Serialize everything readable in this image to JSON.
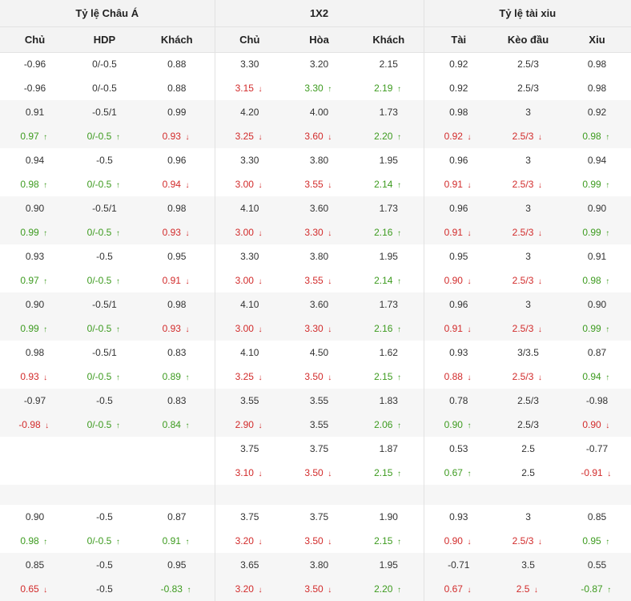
{
  "colors": {
    "up": "#3d9b1f",
    "down": "#d22b2b",
    "header_bg": "#f3f3f3",
    "alt_row_bg": "#f6f6f6"
  },
  "icons": {
    "up": "arrow-up-icon",
    "down": "arrow-down-icon"
  },
  "header": {
    "groups": [
      "Tỷ lệ Châu Á",
      "1X2",
      "Tỷ lệ tài xiu"
    ],
    "columns": [
      "Chủ",
      "HDP",
      "Khách",
      "Chủ",
      "Hòa",
      "Khách",
      "Tài",
      "Kèo đầu",
      "Xiu"
    ]
  },
  "rows": [
    {
      "shade": false,
      "cells": [
        {
          "v": "-0.96"
        },
        {
          "v": "0/-0.5"
        },
        {
          "v": "0.88"
        },
        {
          "v": "3.30"
        },
        {
          "v": "3.20"
        },
        {
          "v": "2.15"
        },
        {
          "v": "0.92"
        },
        {
          "v": "2.5/3"
        },
        {
          "v": "0.98"
        }
      ]
    },
    {
      "shade": false,
      "cells": [
        {
          "v": "-0.96"
        },
        {
          "v": "0/-0.5"
        },
        {
          "v": "0.88"
        },
        {
          "v": "3.15",
          "d": "down"
        },
        {
          "v": "3.30",
          "d": "up"
        },
        {
          "v": "2.19",
          "d": "up"
        },
        {
          "v": "0.92"
        },
        {
          "v": "2.5/3"
        },
        {
          "v": "0.98"
        }
      ]
    },
    {
      "shade": true,
      "cells": [
        {
          "v": "0.91"
        },
        {
          "v": "-0.5/1"
        },
        {
          "v": "0.99"
        },
        {
          "v": "4.20"
        },
        {
          "v": "4.00"
        },
        {
          "v": "1.73"
        },
        {
          "v": "0.98"
        },
        {
          "v": "3"
        },
        {
          "v": "0.92"
        }
      ]
    },
    {
      "shade": true,
      "cells": [
        {
          "v": "0.97",
          "d": "up"
        },
        {
          "v": "0/-0.5",
          "d": "up"
        },
        {
          "v": "0.93",
          "d": "down"
        },
        {
          "v": "3.25",
          "d": "down"
        },
        {
          "v": "3.60",
          "d": "down"
        },
        {
          "v": "2.20",
          "d": "up"
        },
        {
          "v": "0.92",
          "d": "down"
        },
        {
          "v": "2.5/3",
          "d": "down"
        },
        {
          "v": "0.98",
          "d": "up"
        }
      ]
    },
    {
      "shade": false,
      "cells": [
        {
          "v": "0.94"
        },
        {
          "v": "-0.5"
        },
        {
          "v": "0.96"
        },
        {
          "v": "3.30"
        },
        {
          "v": "3.80"
        },
        {
          "v": "1.95"
        },
        {
          "v": "0.96"
        },
        {
          "v": "3"
        },
        {
          "v": "0.94"
        }
      ]
    },
    {
      "shade": false,
      "cells": [
        {
          "v": "0.98",
          "d": "up"
        },
        {
          "v": "0/-0.5",
          "d": "up"
        },
        {
          "v": "0.94",
          "d": "down"
        },
        {
          "v": "3.00",
          "d": "down"
        },
        {
          "v": "3.55",
          "d": "down"
        },
        {
          "v": "2.14",
          "d": "up"
        },
        {
          "v": "0.91",
          "d": "down"
        },
        {
          "v": "2.5/3",
          "d": "down"
        },
        {
          "v": "0.99",
          "d": "up"
        }
      ]
    },
    {
      "shade": true,
      "cells": [
        {
          "v": "0.90"
        },
        {
          "v": "-0.5/1"
        },
        {
          "v": "0.98"
        },
        {
          "v": "4.10"
        },
        {
          "v": "3.60"
        },
        {
          "v": "1.73"
        },
        {
          "v": "0.96"
        },
        {
          "v": "3"
        },
        {
          "v": "0.90"
        }
      ]
    },
    {
      "shade": true,
      "cells": [
        {
          "v": "0.99",
          "d": "up"
        },
        {
          "v": "0/-0.5",
          "d": "up"
        },
        {
          "v": "0.93",
          "d": "down"
        },
        {
          "v": "3.00",
          "d": "down"
        },
        {
          "v": "3.30",
          "d": "down"
        },
        {
          "v": "2.16",
          "d": "up"
        },
        {
          "v": "0.91",
          "d": "down"
        },
        {
          "v": "2.5/3",
          "d": "down"
        },
        {
          "v": "0.99",
          "d": "up"
        }
      ]
    },
    {
      "shade": false,
      "cells": [
        {
          "v": "0.93"
        },
        {
          "v": "-0.5"
        },
        {
          "v": "0.95"
        },
        {
          "v": "3.30"
        },
        {
          "v": "3.80"
        },
        {
          "v": "1.95"
        },
        {
          "v": "0.95"
        },
        {
          "v": "3"
        },
        {
          "v": "0.91"
        }
      ]
    },
    {
      "shade": false,
      "cells": [
        {
          "v": "0.97",
          "d": "up"
        },
        {
          "v": "0/-0.5",
          "d": "up"
        },
        {
          "v": "0.91",
          "d": "down"
        },
        {
          "v": "3.00",
          "d": "down"
        },
        {
          "v": "3.55",
          "d": "down"
        },
        {
          "v": "2.14",
          "d": "up"
        },
        {
          "v": "0.90",
          "d": "down"
        },
        {
          "v": "2.5/3",
          "d": "down"
        },
        {
          "v": "0.98",
          "d": "up"
        }
      ]
    },
    {
      "shade": true,
      "cells": [
        {
          "v": "0.90"
        },
        {
          "v": "-0.5/1"
        },
        {
          "v": "0.98"
        },
        {
          "v": "4.10"
        },
        {
          "v": "3.60"
        },
        {
          "v": "1.73"
        },
        {
          "v": "0.96"
        },
        {
          "v": "3"
        },
        {
          "v": "0.90"
        }
      ]
    },
    {
      "shade": true,
      "cells": [
        {
          "v": "0.99",
          "d": "up"
        },
        {
          "v": "0/-0.5",
          "d": "up"
        },
        {
          "v": "0.93",
          "d": "down"
        },
        {
          "v": "3.00",
          "d": "down"
        },
        {
          "v": "3.30",
          "d": "down"
        },
        {
          "v": "2.16",
          "d": "up"
        },
        {
          "v": "0.91",
          "d": "down"
        },
        {
          "v": "2.5/3",
          "d": "down"
        },
        {
          "v": "0.99",
          "d": "up"
        }
      ]
    },
    {
      "shade": false,
      "cells": [
        {
          "v": "0.98"
        },
        {
          "v": "-0.5/1"
        },
        {
          "v": "0.83"
        },
        {
          "v": "4.10"
        },
        {
          "v": "4.50"
        },
        {
          "v": "1.62"
        },
        {
          "v": "0.93"
        },
        {
          "v": "3/3.5"
        },
        {
          "v": "0.87"
        }
      ]
    },
    {
      "shade": false,
      "cells": [
        {
          "v": "0.93",
          "d": "down"
        },
        {
          "v": "0/-0.5",
          "d": "up"
        },
        {
          "v": "0.89",
          "d": "up"
        },
        {
          "v": "3.25",
          "d": "down"
        },
        {
          "v": "3.50",
          "d": "down"
        },
        {
          "v": "2.15",
          "d": "up"
        },
        {
          "v": "0.88",
          "d": "down"
        },
        {
          "v": "2.5/3",
          "d": "down"
        },
        {
          "v": "0.94",
          "d": "up"
        }
      ]
    },
    {
      "shade": true,
      "cells": [
        {
          "v": "-0.97"
        },
        {
          "v": "-0.5"
        },
        {
          "v": "0.83"
        },
        {
          "v": "3.55"
        },
        {
          "v": "3.55"
        },
        {
          "v": "1.83"
        },
        {
          "v": "0.78"
        },
        {
          "v": "2.5/3"
        },
        {
          "v": "-0.98"
        }
      ]
    },
    {
      "shade": true,
      "cells": [
        {
          "v": "-0.98",
          "d": "down"
        },
        {
          "v": "0/-0.5",
          "d": "up"
        },
        {
          "v": "0.84",
          "d": "up"
        },
        {
          "v": "2.90",
          "d": "down"
        },
        {
          "v": "3.55"
        },
        {
          "v": "2.06",
          "d": "up"
        },
        {
          "v": "0.90",
          "d": "up"
        },
        {
          "v": "2.5/3"
        },
        {
          "v": "0.90",
          "d": "down"
        }
      ]
    },
    {
      "shade": false,
      "cells": [
        {
          "v": ""
        },
        {
          "v": ""
        },
        {
          "v": ""
        },
        {
          "v": "3.75"
        },
        {
          "v": "3.75"
        },
        {
          "v": "1.87"
        },
        {
          "v": "0.53"
        },
        {
          "v": "2.5"
        },
        {
          "v": "-0.77"
        }
      ]
    },
    {
      "shade": false,
      "cells": [
        {
          "v": ""
        },
        {
          "v": ""
        },
        {
          "v": ""
        },
        {
          "v": "3.10",
          "d": "down"
        },
        {
          "v": "3.50",
          "d": "down"
        },
        {
          "v": "2.15",
          "d": "up"
        },
        {
          "v": "0.67",
          "d": "up"
        },
        {
          "v": "2.5"
        },
        {
          "v": "-0.91",
          "d": "down"
        }
      ]
    },
    {
      "shade": true,
      "gap": true,
      "cells": [
        {
          "v": ""
        },
        {
          "v": ""
        },
        {
          "v": ""
        },
        {
          "v": ""
        },
        {
          "v": ""
        },
        {
          "v": ""
        },
        {
          "v": ""
        },
        {
          "v": ""
        },
        {
          "v": ""
        }
      ]
    },
    {
      "shade": false,
      "cells": [
        {
          "v": "0.90"
        },
        {
          "v": "-0.5"
        },
        {
          "v": "0.87"
        },
        {
          "v": "3.75"
        },
        {
          "v": "3.75"
        },
        {
          "v": "1.90"
        },
        {
          "v": "0.93"
        },
        {
          "v": "3"
        },
        {
          "v": "0.85"
        }
      ]
    },
    {
      "shade": false,
      "cells": [
        {
          "v": "0.98",
          "d": "up"
        },
        {
          "v": "0/-0.5",
          "d": "up"
        },
        {
          "v": "0.91",
          "d": "up"
        },
        {
          "v": "3.20",
          "d": "down"
        },
        {
          "v": "3.50",
          "d": "down"
        },
        {
          "v": "2.15",
          "d": "up"
        },
        {
          "v": "0.90",
          "d": "down"
        },
        {
          "v": "2.5/3",
          "d": "down"
        },
        {
          "v": "0.95",
          "d": "up"
        }
      ]
    },
    {
      "shade": true,
      "cells": [
        {
          "v": "0.85"
        },
        {
          "v": "-0.5"
        },
        {
          "v": "0.95"
        },
        {
          "v": "3.65"
        },
        {
          "v": "3.80"
        },
        {
          "v": "1.95"
        },
        {
          "v": "-0.71"
        },
        {
          "v": "3.5"
        },
        {
          "v": "0.55"
        }
      ]
    },
    {
      "shade": true,
      "cells": [
        {
          "v": "0.65",
          "d": "down"
        },
        {
          "v": "-0.5"
        },
        {
          "v": "-0.83",
          "d": "up"
        },
        {
          "v": "3.20",
          "d": "down"
        },
        {
          "v": "3.50",
          "d": "down"
        },
        {
          "v": "2.20",
          "d": "up"
        },
        {
          "v": "0.67",
          "d": "down"
        },
        {
          "v": "2.5",
          "d": "down"
        },
        {
          "v": "-0.87",
          "d": "up"
        }
      ]
    }
  ]
}
